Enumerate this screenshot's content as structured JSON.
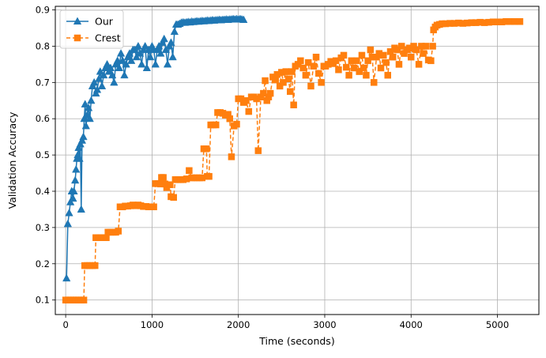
{
  "chart_data": {
    "type": "line",
    "title": "",
    "xlabel": "Time (seconds)",
    "ylabel": "Validation Accuracy",
    "xlim": [
      -120,
      5480
    ],
    "ylim": [
      0.06,
      0.91
    ],
    "xticks": [
      0,
      1000,
      2000,
      3000,
      4000,
      5000
    ],
    "yticks": [
      0.1,
      0.2,
      0.3,
      0.4,
      0.5,
      0.6,
      0.7,
      0.8,
      0.9
    ],
    "grid": true,
    "legend_position": "top-left",
    "colors": {
      "our": "#1f77b4",
      "crest": "#ff7f0e",
      "grid": "#b0b0b0"
    },
    "series": [
      {
        "name": "Our",
        "marker": "triangle",
        "line_style": "solid",
        "points": [
          [
            10,
            0.16
          ],
          [
            25,
            0.31
          ],
          [
            40,
            0.34
          ],
          [
            55,
            0.37
          ],
          [
            70,
            0.4
          ],
          [
            85,
            0.38
          ],
          [
            95,
            0.4
          ],
          [
            110,
            0.43
          ],
          [
            120,
            0.46
          ],
          [
            130,
            0.49
          ],
          [
            140,
            0.5
          ],
          [
            150,
            0.52
          ],
          [
            160,
            0.49
          ],
          [
            170,
            0.53
          ],
          [
            180,
            0.35
          ],
          [
            190,
            0.54
          ],
          [
            205,
            0.55
          ],
          [
            215,
            0.6
          ],
          [
            225,
            0.64
          ],
          [
            235,
            0.58
          ],
          [
            250,
            0.61
          ],
          [
            265,
            0.63
          ],
          [
            280,
            0.6
          ],
          [
            295,
            0.65
          ],
          [
            310,
            0.69
          ],
          [
            330,
            0.7
          ],
          [
            350,
            0.67
          ],
          [
            365,
            0.68
          ],
          [
            385,
            0.71
          ],
          [
            400,
            0.73
          ],
          [
            420,
            0.69
          ],
          [
            440,
            0.72
          ],
          [
            460,
            0.74
          ],
          [
            480,
            0.75
          ],
          [
            500,
            0.73
          ],
          [
            520,
            0.74
          ],
          [
            540,
            0.72
          ],
          [
            560,
            0.7
          ],
          [
            580,
            0.75
          ],
          [
            600,
            0.76
          ],
          [
            620,
            0.74
          ],
          [
            640,
            0.78
          ],
          [
            660,
            0.76
          ],
          [
            680,
            0.72
          ],
          [
            700,
            0.75
          ],
          [
            720,
            0.77
          ],
          [
            740,
            0.78
          ],
          [
            760,
            0.76
          ],
          [
            780,
            0.79
          ],
          [
            800,
            0.79
          ],
          [
            820,
            0.77
          ],
          [
            840,
            0.8
          ],
          [
            860,
            0.78
          ],
          [
            880,
            0.75
          ],
          [
            900,
            0.79
          ],
          [
            920,
            0.8
          ],
          [
            940,
            0.74
          ],
          [
            960,
            0.79
          ],
          [
            980,
            0.77
          ],
          [
            1000,
            0.8
          ],
          [
            1020,
            0.79
          ],
          [
            1040,
            0.75
          ],
          [
            1060,
            0.79
          ],
          [
            1080,
            0.8
          ],
          [
            1100,
            0.78
          ],
          [
            1120,
            0.81
          ],
          [
            1140,
            0.82
          ],
          [
            1160,
            0.79
          ],
          [
            1180,
            0.75
          ],
          [
            1200,
            0.8
          ],
          [
            1220,
            0.81
          ],
          [
            1240,
            0.77
          ],
          [
            1260,
            0.84
          ],
          [
            1280,
            0.86
          ],
          [
            1300,
            0.86
          ],
          [
            1320,
            0.862
          ],
          [
            1340,
            0.865
          ],
          [
            1360,
            0.866
          ],
          [
            1380,
            0.865
          ],
          [
            1400,
            0.866
          ],
          [
            1420,
            0.867
          ],
          [
            1440,
            0.866
          ],
          [
            1460,
            0.868
          ],
          [
            1480,
            0.867
          ],
          [
            1500,
            0.868
          ],
          [
            1520,
            0.869
          ],
          [
            1540,
            0.868
          ],
          [
            1560,
            0.869
          ],
          [
            1580,
            0.87
          ],
          [
            1600,
            0.869
          ],
          [
            1620,
            0.87
          ],
          [
            1640,
            0.871
          ],
          [
            1660,
            0.87
          ],
          [
            1680,
            0.871
          ],
          [
            1700,
            0.872
          ],
          [
            1720,
            0.871
          ],
          [
            1740,
            0.872
          ],
          [
            1760,
            0.872
          ],
          [
            1780,
            0.873
          ],
          [
            1800,
            0.872
          ],
          [
            1820,
            0.873
          ],
          [
            1840,
            0.873
          ],
          [
            1860,
            0.874
          ],
          [
            1880,
            0.873
          ],
          [
            1900,
            0.874
          ],
          [
            1920,
            0.874
          ],
          [
            1940,
            0.875
          ],
          [
            1960,
            0.874
          ],
          [
            1980,
            0.875
          ],
          [
            2000,
            0.874
          ],
          [
            2020,
            0.875
          ],
          [
            2040,
            0.874
          ],
          [
            2060,
            0.873
          ]
        ]
      },
      {
        "name": "Crest",
        "marker": "square",
        "line_style": "dashed",
        "points": [
          [
            0,
            0.1
          ],
          [
            30,
            0.1
          ],
          [
            60,
            0.1
          ],
          [
            90,
            0.1
          ],
          [
            120,
            0.1
          ],
          [
            150,
            0.1
          ],
          [
            180,
            0.1
          ],
          [
            210,
            0.1
          ],
          [
            220,
            0.195
          ],
          [
            250,
            0.195
          ],
          [
            280,
            0.195
          ],
          [
            310,
            0.195
          ],
          [
            340,
            0.195
          ],
          [
            350,
            0.272
          ],
          [
            380,
            0.272
          ],
          [
            410,
            0.272
          ],
          [
            440,
            0.272
          ],
          [
            470,
            0.272
          ],
          [
            490,
            0.287
          ],
          [
            520,
            0.287
          ],
          [
            550,
            0.287
          ],
          [
            580,
            0.287
          ],
          [
            610,
            0.29
          ],
          [
            630,
            0.357
          ],
          [
            660,
            0.357
          ],
          [
            690,
            0.359
          ],
          [
            720,
            0.359
          ],
          [
            750,
            0.36
          ],
          [
            780,
            0.362
          ],
          [
            810,
            0.36
          ],
          [
            840,
            0.362
          ],
          [
            870,
            0.36
          ],
          [
            900,
            0.358
          ],
          [
            930,
            0.358
          ],
          [
            960,
            0.357
          ],
          [
            990,
            0.357
          ],
          [
            1020,
            0.357
          ],
          [
            1040,
            0.421
          ],
          [
            1070,
            0.421
          ],
          [
            1100,
            0.42
          ],
          [
            1110,
            0.438
          ],
          [
            1130,
            0.438
          ],
          [
            1150,
            0.42
          ],
          [
            1170,
            0.41
          ],
          [
            1190,
            0.418
          ],
          [
            1210,
            0.418
          ],
          [
            1220,
            0.385
          ],
          [
            1250,
            0.383
          ],
          [
            1270,
            0.432
          ],
          [
            1300,
            0.432
          ],
          [
            1330,
            0.432
          ],
          [
            1360,
            0.432
          ],
          [
            1400,
            0.434
          ],
          [
            1430,
            0.457
          ],
          [
            1460,
            0.437
          ],
          [
            1490,
            0.437
          ],
          [
            1520,
            0.437
          ],
          [
            1550,
            0.437
          ],
          [
            1580,
            0.437
          ],
          [
            1600,
            0.517
          ],
          [
            1630,
            0.517
          ],
          [
            1640,
            0.441
          ],
          [
            1660,
            0.441
          ],
          [
            1680,
            0.583
          ],
          [
            1710,
            0.583
          ],
          [
            1740,
            0.583
          ],
          [
            1760,
            0.617
          ],
          [
            1790,
            0.617
          ],
          [
            1820,
            0.615
          ],
          [
            1850,
            0.61
          ],
          [
            1880,
            0.612
          ],
          [
            1900,
            0.6
          ],
          [
            1920,
            0.495
          ],
          [
            1950,
            0.58
          ],
          [
            1980,
            0.585
          ],
          [
            2000,
            0.655
          ],
          [
            2030,
            0.655
          ],
          [
            2060,
            0.645
          ],
          [
            2090,
            0.65
          ],
          [
            2120,
            0.62
          ],
          [
            2150,
            0.66
          ],
          [
            2180,
            0.66
          ],
          [
            2210,
            0.655
          ],
          [
            2230,
            0.512
          ],
          [
            2260,
            0.66
          ],
          [
            2290,
            0.67
          ],
          [
            2310,
            0.705
          ],
          [
            2330,
            0.65
          ],
          [
            2350,
            0.66
          ],
          [
            2370,
            0.67
          ],
          [
            2400,
            0.715
          ],
          [
            2430,
            0.707
          ],
          [
            2450,
            0.722
          ],
          [
            2480,
            0.69
          ],
          [
            2500,
            0.728
          ],
          [
            2520,
            0.7
          ],
          [
            2550,
            0.73
          ],
          [
            2580,
            0.71
          ],
          [
            2600,
            0.675
          ],
          [
            2620,
            0.73
          ],
          [
            2640,
            0.638
          ],
          [
            2660,
            0.745
          ],
          [
            2690,
            0.75
          ],
          [
            2720,
            0.76
          ],
          [
            2750,
            0.74
          ],
          [
            2780,
            0.72
          ],
          [
            2810,
            0.755
          ],
          [
            2840,
            0.69
          ],
          [
            2870,
            0.745
          ],
          [
            2900,
            0.77
          ],
          [
            2930,
            0.725
          ],
          [
            2960,
            0.7
          ],
          [
            2990,
            0.745
          ],
          [
            3010,
            0.745
          ],
          [
            3040,
            0.75
          ],
          [
            3070,
            0.758
          ],
          [
            3100,
            0.752
          ],
          [
            3130,
            0.76
          ],
          [
            3160,
            0.735
          ],
          [
            3190,
            0.768
          ],
          [
            3220,
            0.775
          ],
          [
            3250,
            0.742
          ],
          [
            3280,
            0.72
          ],
          [
            3310,
            0.76
          ],
          [
            3340,
            0.74
          ],
          [
            3370,
            0.76
          ],
          [
            3400,
            0.73
          ],
          [
            3430,
            0.775
          ],
          [
            3450,
            0.74
          ],
          [
            3480,
            0.72
          ],
          [
            3500,
            0.76
          ],
          [
            3530,
            0.79
          ],
          [
            3550,
            0.77
          ],
          [
            3570,
            0.7
          ],
          [
            3600,
            0.77
          ],
          [
            3630,
            0.78
          ],
          [
            3650,
            0.74
          ],
          [
            3680,
            0.775
          ],
          [
            3710,
            0.755
          ],
          [
            3730,
            0.72
          ],
          [
            3760,
            0.785
          ],
          [
            3790,
            0.77
          ],
          [
            3810,
            0.795
          ],
          [
            3840,
            0.79
          ],
          [
            3860,
            0.75
          ],
          [
            3890,
            0.8
          ],
          [
            3920,
            0.78
          ],
          [
            3950,
            0.79
          ],
          [
            3980,
            0.795
          ],
          [
            4000,
            0.77
          ],
          [
            4030,
            0.8
          ],
          [
            4060,
            0.79
          ],
          [
            4090,
            0.75
          ],
          [
            4120,
            0.8
          ],
          [
            4140,
            0.78
          ],
          [
            4170,
            0.8
          ],
          [
            4200,
            0.762
          ],
          [
            4230,
            0.76
          ],
          [
            4250,
            0.8
          ],
          [
            4260,
            0.845
          ],
          [
            4280,
            0.853
          ],
          [
            4300,
            0.858
          ],
          [
            4330,
            0.86
          ],
          [
            4360,
            0.862
          ],
          [
            4400,
            0.862
          ],
          [
            4450,
            0.863
          ],
          [
            4500,
            0.863
          ],
          [
            4550,
            0.864
          ],
          [
            4600,
            0.863
          ],
          [
            4650,
            0.864
          ],
          [
            4700,
            0.865
          ],
          [
            4750,
            0.865
          ],
          [
            4800,
            0.866
          ],
          [
            4850,
            0.865
          ],
          [
            4900,
            0.866
          ],
          [
            4950,
            0.867
          ],
          [
            5000,
            0.867
          ],
          [
            5050,
            0.867
          ],
          [
            5100,
            0.868
          ],
          [
            5150,
            0.868
          ],
          [
            5200,
            0.868
          ],
          [
            5260,
            0.868
          ]
        ]
      }
    ]
  }
}
